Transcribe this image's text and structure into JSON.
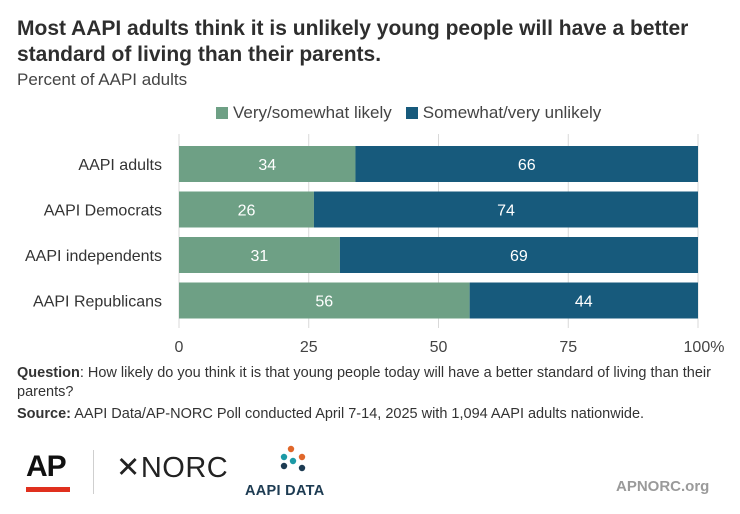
{
  "title": "Most AAPI adults think it is unlikely young people will have a better standard of living than their parents.",
  "subtitle": "Percent of AAPI adults",
  "colors": {
    "likely": "#6ea085",
    "unlikely": "#175a7c"
  },
  "chart_data": {
    "type": "bar",
    "orientation": "horizontal-stacked",
    "categories": [
      "AAPI adults",
      "AAPI Democrats",
      "AAPI independents",
      "AAPI Republicans"
    ],
    "series": [
      {
        "name": "Very/somewhat likely",
        "values": [
          34,
          26,
          31,
          56
        ]
      },
      {
        "name": "Somewhat/very unlikely",
        "values": [
          66,
          74,
          69,
          44
        ]
      }
    ],
    "xlim": [
      0,
      100
    ],
    "xticks": [
      0,
      25,
      50,
      75,
      100
    ],
    "xtick_labels": [
      "0",
      "25",
      "50",
      "75",
      "100%"
    ],
    "legend_position": "top",
    "grid": "vertical"
  },
  "question": {
    "label": "Question",
    "text": ": How likely do you think it is that young people today will have a better standard of living than their parents?"
  },
  "source": {
    "label": "Source:",
    "text": " AAPI Data/AP-NORC Poll conducted April 7-14, 2025 with 1,094 AAPI adults nationwide."
  },
  "logos": {
    "ap": "AP",
    "norc": "NORC",
    "aapi": "AAPI DATA",
    "site": "APNORC.org"
  }
}
